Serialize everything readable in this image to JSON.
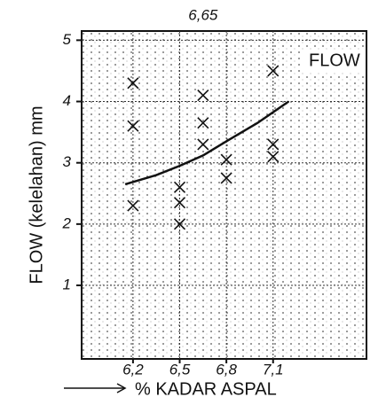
{
  "chart_data": {
    "type": "scatter",
    "ylabel": "FLOW (kelelahan) mm",
    "xlabel": "% KADAR ASPAL",
    "annotation": {
      "text": "6,65",
      "x": 6.65
    },
    "series": [
      {
        "name": "FLOW",
        "color": "#111111",
        "x": [
          6.2,
          6.2,
          6.2,
          6.5,
          6.5,
          6.5,
          6.65,
          6.65,
          6.65,
          6.8,
          6.8,
          7.1,
          7.1,
          7.1
        ],
        "values": [
          4.3,
          3.6,
          2.3,
          2.35,
          2.0,
          2.6,
          4.1,
          3.65,
          3.3,
          3.05,
          2.75,
          4.5,
          3.3,
          3.1
        ]
      }
    ],
    "trend": {
      "color": "#111111",
      "x": [
        6.15,
        6.35,
        6.5,
        6.65,
        6.8,
        7.0,
        7.2
      ],
      "values": [
        2.65,
        2.8,
        2.95,
        3.12,
        3.35,
        3.65,
        4.0
      ]
    },
    "xlim": [
      5.87,
      7.7
    ],
    "ylim": [
      -0.2,
      5.15
    ],
    "xticks": [
      {
        "value": 6.2,
        "label": "6,2"
      },
      {
        "value": 6.5,
        "label": "6,5"
      },
      {
        "value": 6.8,
        "label": "6,8"
      },
      {
        "value": 7.1,
        "label": "7,1"
      }
    ],
    "yticks": [
      1,
      2,
      3,
      4,
      5
    ],
    "grid": true,
    "legend": "upper right"
  }
}
